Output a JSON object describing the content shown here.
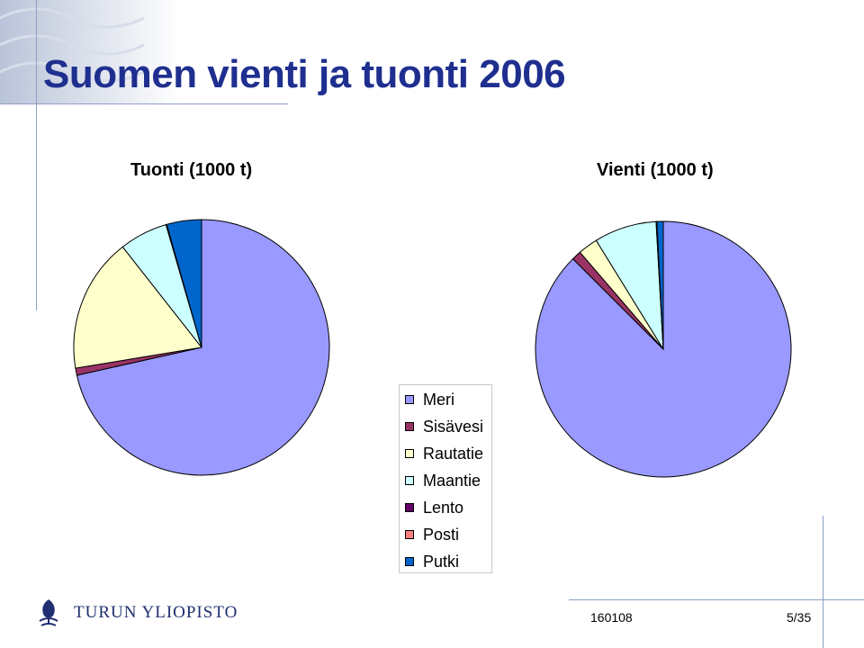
{
  "slide": {
    "title": "Suomen vienti ja tuonti 2006",
    "footer_date": "160108",
    "page": "5/35"
  },
  "logo": {
    "text": "TURUN YLIOPISTO",
    "icon": "university-emblem-icon"
  },
  "colors": {
    "title": "#1f2f8f",
    "Meri": "#9999ff",
    "Sisävesi": "#993366",
    "Rautatie": "#ffffcc",
    "Maantie": "#ccffff",
    "Lento": "#660066",
    "Posti": "#ff8080",
    "Putki": "#0066cc"
  },
  "chart_data": [
    {
      "type": "pie",
      "title": "Tuonti (1000 t)",
      "categories": [
        "Meri",
        "Sisävesi",
        "Rautatie",
        "Maantie",
        "Lento",
        "Posti",
        "Putki"
      ],
      "values": [
        71.5,
        0.9,
        17.0,
        6.1,
        0.05,
        0.05,
        4.4
      ],
      "legend": "shared-center"
    },
    {
      "type": "pie",
      "title": "Vienti (1000 t)",
      "categories": [
        "Meri",
        "Sisävesi",
        "Rautatie",
        "Maantie",
        "Lento",
        "Posti",
        "Putki"
      ],
      "values": [
        87.5,
        1.2,
        2.5,
        7.9,
        0.05,
        0.05,
        0.8
      ],
      "legend": "shared-center"
    }
  ]
}
